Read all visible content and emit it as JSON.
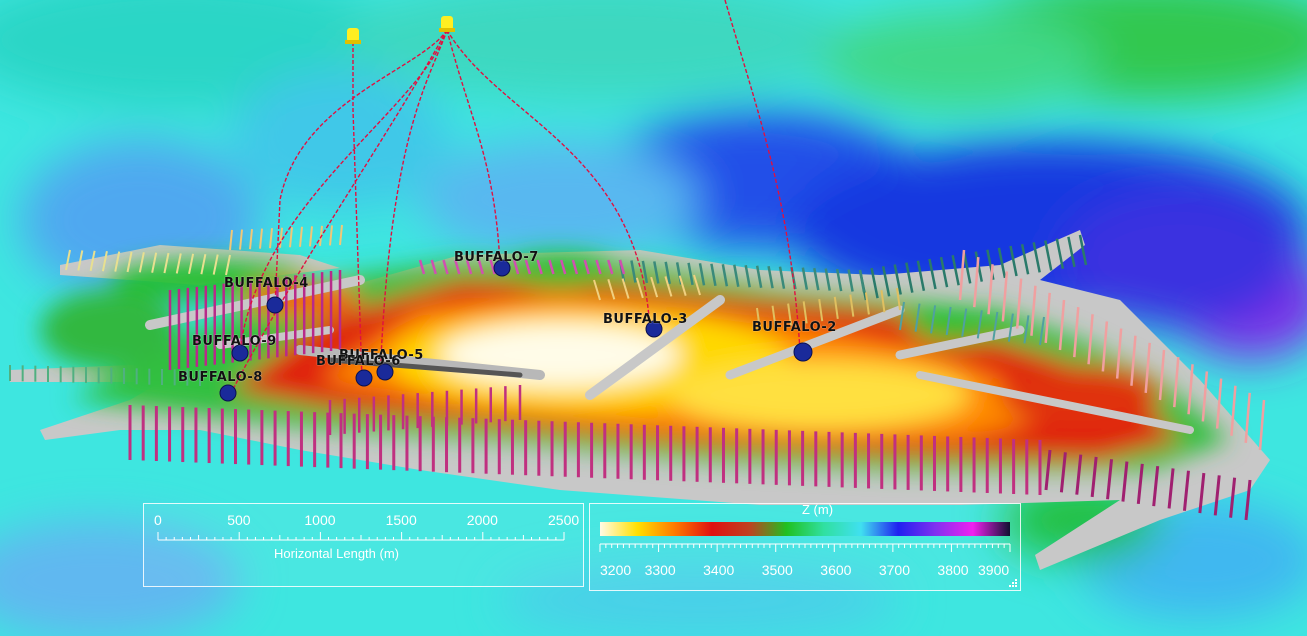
{
  "wells": [
    {
      "id": "w4",
      "label": "BUFFALO-4"
    },
    {
      "id": "w9",
      "label": "BUFFALO-9"
    },
    {
      "id": "w8",
      "label": "BUFFALO-8"
    },
    {
      "id": "w5",
      "label": "BUFFALO-5"
    },
    {
      "id": "w6",
      "label": "BUFFALO-6"
    },
    {
      "id": "w7",
      "label": "BUFFALO-7"
    },
    {
      "id": "w3",
      "label": "BUFFALO-3"
    },
    {
      "id": "w2",
      "label": "BUFFALO-2"
    }
  ],
  "scale_bar": {
    "title": "Horizontal Length (m)",
    "ticks": [
      "0",
      "500",
      "1000",
      "1500",
      "2000",
      "2500"
    ]
  },
  "color_bar": {
    "title": "Z (m)",
    "ticks": [
      "3200",
      "3300",
      "3400",
      "3500",
      "3600",
      "3700",
      "3800",
      "3900"
    ],
    "stops": [
      "#fffbe6",
      "#ffe000",
      "#ff7a00",
      "#e01010",
      "#c04020",
      "#20c020",
      "#30e0a0",
      "#40e0f0",
      "#2020f0",
      "#8030f0",
      "#f020f0",
      "#101030"
    ]
  }
}
